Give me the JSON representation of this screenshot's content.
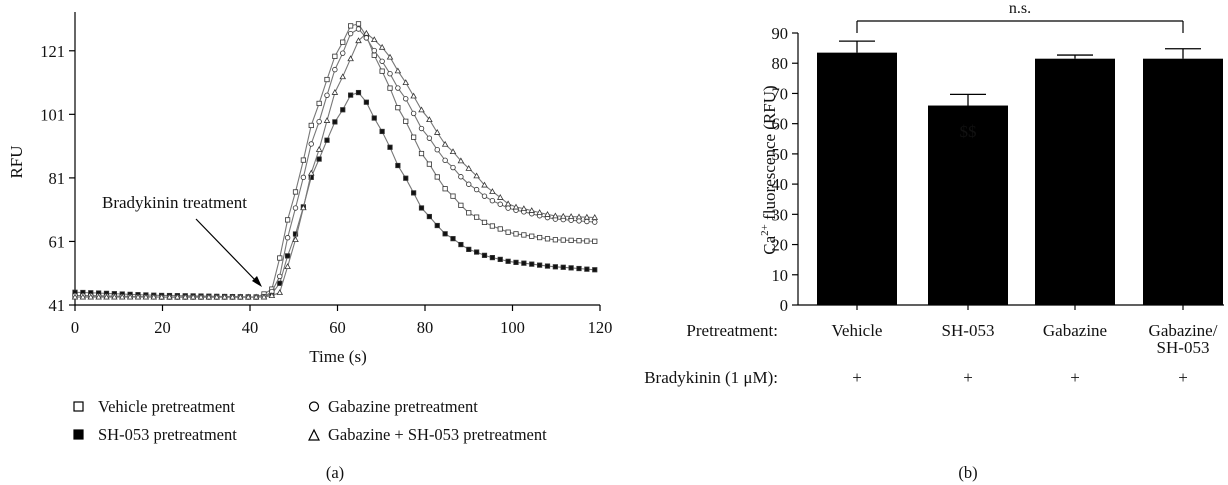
{
  "panel_a": {
    "label": "(a)",
    "annotation": "Bradykinin treatment",
    "legend": {
      "vehicle": "Vehicle pretreatment",
      "sh053": "SH-053 pretreatment",
      "gabazine": "Gabazine pretreatment",
      "combo": "Gabazine + SH-053 pretreatment"
    }
  },
  "panel_b": {
    "label": "(b)",
    "significance": "n.s.",
    "sig_marker": "$$",
    "row_labels": {
      "pretreatment": "Pretreatment:",
      "bradykinin": "Bradykinin (1 μM):"
    },
    "category_labels": [
      [
        "Vehicle"
      ],
      [
        "SH-053"
      ],
      [
        "Gabazine"
      ],
      [
        "Gabazine/",
        "SH-053"
      ]
    ],
    "bradykinin_marks": [
      "+",
      "+",
      "+",
      "+"
    ]
  },
  "chart_data": [
    {
      "type": "line",
      "xlabel": "Time (s)",
      "ylabel": "RFU",
      "xlim": [
        0,
        120
      ],
      "ylim": [
        41,
        131
      ],
      "xticks": [
        0,
        20,
        40,
        60,
        80,
        100,
        120
      ],
      "yticks": [
        41,
        61,
        81,
        101,
        121
      ],
      "grid": false,
      "legend_position": "bottom",
      "marker_interval": 1.8,
      "series": [
        {
          "name": "Vehicle pretreatment",
          "marker": "square-open",
          "points": [
            [
              0,
              44
            ],
            [
              20,
              43.5
            ],
            [
              42,
              43.5
            ],
            [
              45,
              46
            ],
            [
              50,
              75
            ],
            [
              55,
              102
            ],
            [
              60,
              121
            ],
            [
              64,
              131
            ],
            [
              66,
              127
            ],
            [
              70,
              115
            ],
            [
              75,
              100
            ],
            [
              80,
              87
            ],
            [
              85,
              77
            ],
            [
              90,
              70
            ],
            [
              95,
              66
            ],
            [
              100,
              63.5
            ],
            [
              110,
              61.5
            ],
            [
              120,
              61
            ]
          ]
        },
        {
          "name": "SH-053 pretreatment",
          "marker": "square-filled",
          "points": [
            [
              0,
              45
            ],
            [
              20,
              44
            ],
            [
              43,
              43.5
            ],
            [
              46,
              45
            ],
            [
              50,
              62
            ],
            [
              55,
              85
            ],
            [
              60,
              100
            ],
            [
              64,
              109
            ],
            [
              66,
              106
            ],
            [
              70,
              96
            ],
            [
              75,
              82
            ],
            [
              80,
              70
            ],
            [
              85,
              63
            ],
            [
              90,
              58.5
            ],
            [
              95,
              56
            ],
            [
              100,
              54.5
            ],
            [
              110,
              53
            ],
            [
              120,
              52
            ]
          ]
        },
        {
          "name": "Gabazine pretreatment",
          "marker": "circle-open",
          "points": [
            [
              0,
              44
            ],
            [
              20,
              43.5
            ],
            [
              43,
              43.5
            ],
            [
              46,
              46
            ],
            [
              50,
              70
            ],
            [
              55,
              96
            ],
            [
              60,
              117
            ],
            [
              64,
              129
            ],
            [
              66,
              126
            ],
            [
              70,
              118
            ],
            [
              75,
              107
            ],
            [
              80,
              95
            ],
            [
              85,
              86
            ],
            [
              90,
              79
            ],
            [
              95,
              74
            ],
            [
              100,
              71
            ],
            [
              110,
              68
            ],
            [
              120,
              67
            ]
          ]
        },
        {
          "name": "Gabazine + SH-053 pretreatment",
          "marker": "triangle-open",
          "points": [
            [
              0,
              43.5
            ],
            [
              20,
              43.5
            ],
            [
              44,
              43.5
            ],
            [
              47,
              45
            ],
            [
              50,
              60
            ],
            [
              55,
              87
            ],
            [
              60,
              110
            ],
            [
              66,
              127
            ],
            [
              69,
              124
            ],
            [
              72,
              119
            ],
            [
              75,
              112
            ],
            [
              80,
              101
            ],
            [
              85,
              91
            ],
            [
              90,
              84
            ],
            [
              95,
              77
            ],
            [
              100,
              72
            ],
            [
              110,
              69
            ],
            [
              120,
              68.5
            ]
          ]
        }
      ]
    },
    {
      "type": "bar",
      "ylabel": "Ca2+ fluorescence (RFU)",
      "ylim": [
        0,
        90
      ],
      "yticks": [
        0,
        10,
        20,
        30,
        40,
        50,
        60,
        70,
        80,
        90
      ],
      "grid": false,
      "categories": [
        "Vehicle",
        "SH-053",
        "Gabazine",
        "Gabazine/SH-053"
      ],
      "values": [
        83.5,
        66,
        81.5,
        81.5
      ],
      "errors": [
        3.8,
        3.7,
        1.2,
        3.3
      ],
      "bar_color": "#000000"
    }
  ]
}
